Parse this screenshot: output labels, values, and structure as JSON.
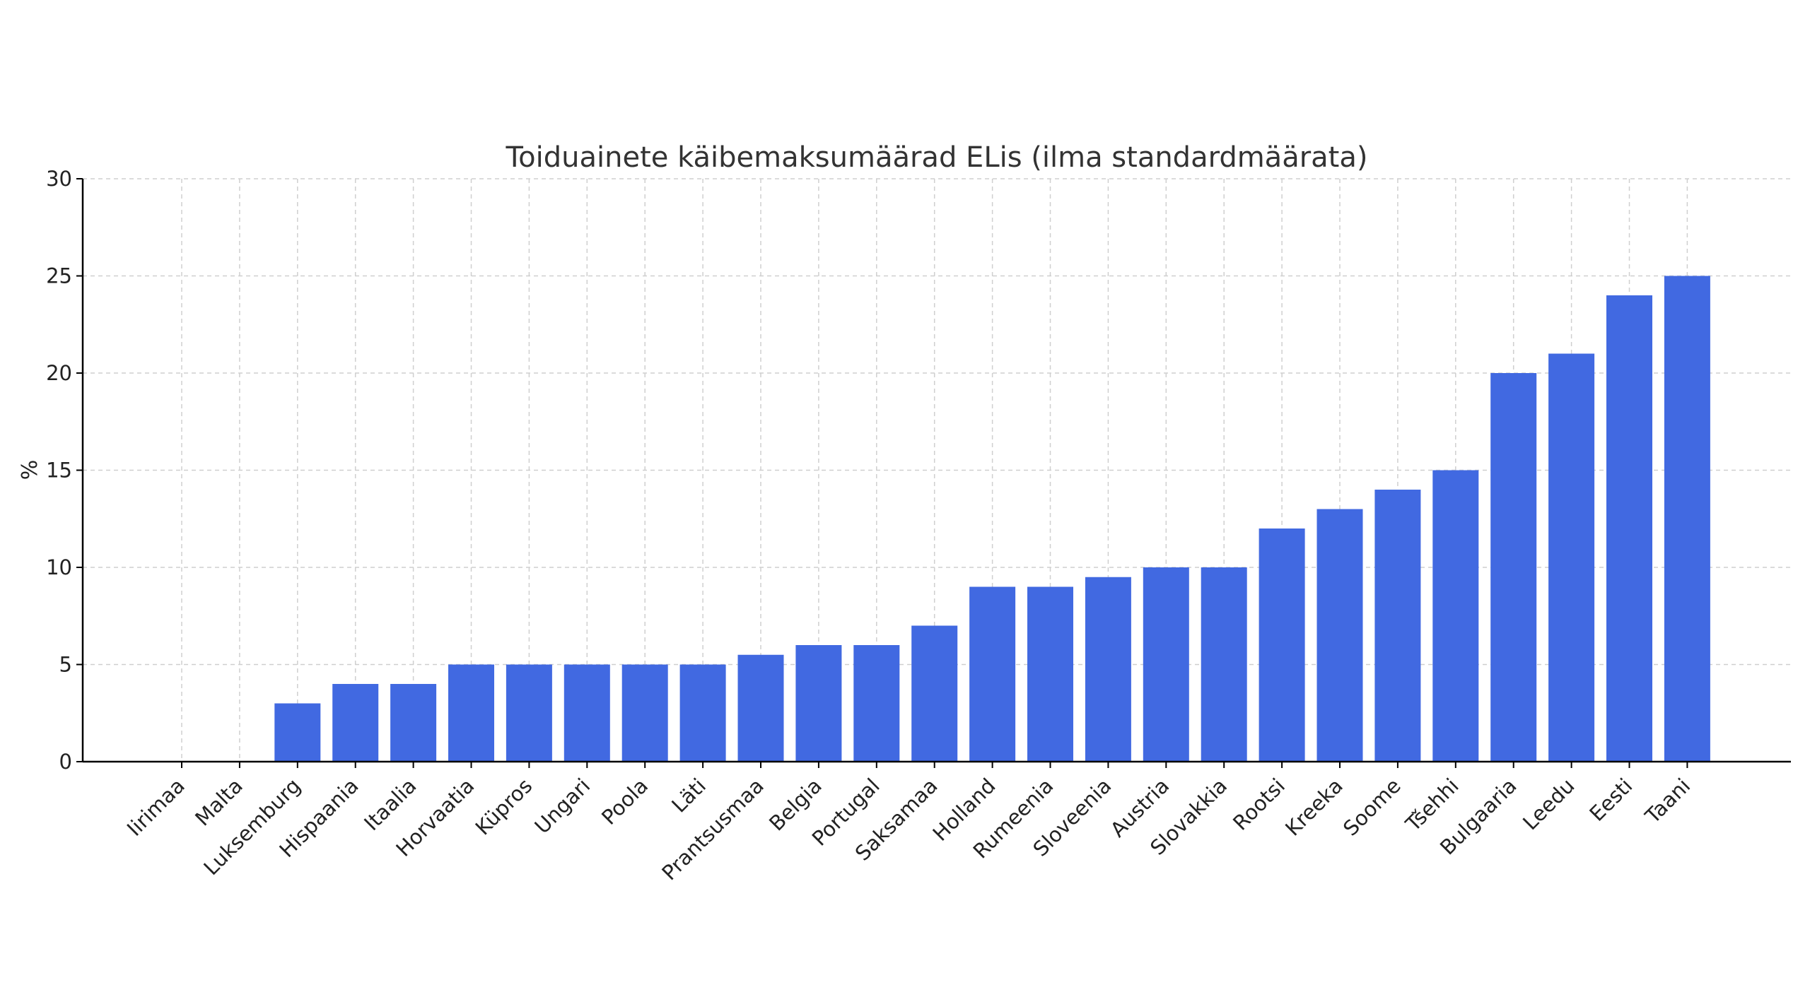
{
  "chart_data": {
    "type": "bar",
    "title": "Toiduainete käibemaksumäärad ELis (ilma standardmäärata)",
    "xlabel": "",
    "ylabel": "%",
    "ylim": [
      0,
      30
    ],
    "yticks": [
      0,
      5,
      10,
      15,
      20,
      25,
      30
    ],
    "grid": true,
    "bar_color": "#4169e1",
    "categories": [
      "Iirimaa",
      "Malta",
      "Luksemburg",
      "Hispaania",
      "Itaalia",
      "Horvaatia",
      "Küpros",
      "Ungari",
      "Poola",
      "Läti",
      "Prantsusmaa",
      "Belgia",
      "Portugal",
      "Saksamaa",
      "Holland",
      "Rumeenia",
      "Sloveenia",
      "Austria",
      "Slovakkia",
      "Rootsi",
      "Kreeka",
      "Soome",
      "Tšehhi",
      "Bulgaaria",
      "Leedu",
      "Eesti",
      "Taani"
    ],
    "values": [
      0,
      0,
      3,
      4,
      4,
      5,
      5,
      5,
      5,
      5,
      5.5,
      6,
      6,
      7,
      9,
      9,
      9.5,
      10,
      10,
      12,
      13,
      14,
      15,
      20,
      21,
      24,
      25
    ]
  }
}
